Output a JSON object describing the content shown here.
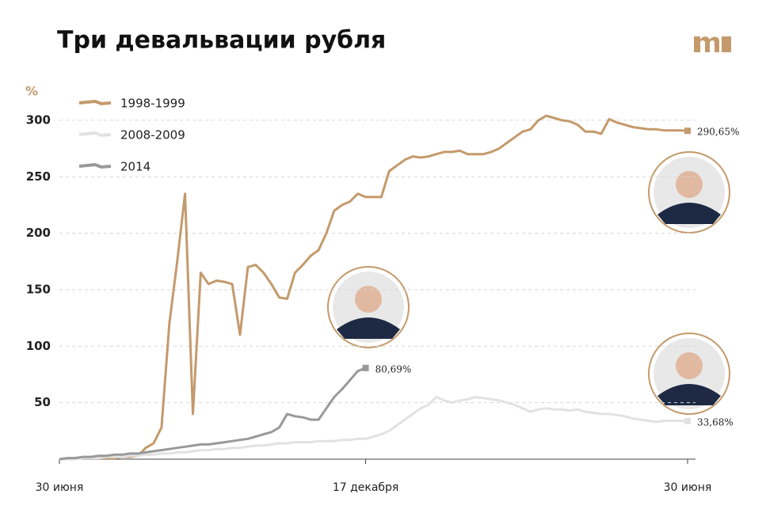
{
  "chart_data": {
    "type": "line",
    "title": "Три девальвации рубля",
    "y_label": "%",
    "categories": [
      "30 июня",
      null,
      null,
      null,
      null,
      null,
      null,
      null,
      null,
      null,
      null,
      null,
      null,
      null,
      null,
      null,
      null,
      null,
      null,
      null,
      null,
      null,
      null,
      null,
      null,
      null,
      null,
      null,
      null,
      null,
      null,
      null,
      null,
      null,
      null,
      null,
      null,
      null,
      null,
      "17 декабря",
      null,
      null,
      null,
      null,
      null,
      null,
      null,
      null,
      null,
      null,
      null,
      null,
      null,
      null,
      null,
      null,
      null,
      null,
      null,
      null,
      null,
      null,
      null,
      null,
      null,
      null,
      null,
      null,
      null,
      null,
      null,
      null,
      null,
      null,
      null,
      null,
      null,
      null,
      null,
      null,
      "30 июня"
    ],
    "ylim": [
      0,
      310
    ],
    "yticks": [
      50,
      100,
      150,
      200,
      250,
      300
    ],
    "grid": true,
    "legend": "top-left",
    "series": [
      {
        "name": "1998-1999",
        "color": "#c49a6c",
        "values": [
          0,
          0,
          1,
          1,
          1,
          1,
          1,
          1,
          2,
          2,
          3,
          10,
          14,
          28,
          120,
          175,
          235,
          40,
          165,
          155,
          158,
          157,
          155,
          110,
          170,
          172,
          165,
          155,
          143,
          142,
          165,
          172,
          180,
          185,
          200,
          220,
          225,
          228,
          235,
          232,
          232,
          232,
          255,
          260,
          265,
          268,
          267,
          268,
          270,
          272,
          272,
          273,
          270,
          270,
          270,
          272,
          275,
          280,
          285,
          290,
          292,
          300,
          304,
          302,
          300,
          299,
          296,
          290,
          290,
          288,
          301,
          298,
          296,
          294,
          293,
          292,
          292,
          291,
          291,
          291,
          290.65
        ],
        "value_labels": [
          null,
          null,
          null,
          null,
          null,
          null,
          null,
          null,
          null,
          null,
          null,
          null,
          null,
          null,
          null,
          null,
          null,
          null,
          null,
          null,
          null,
          null,
          null,
          null,
          null,
          null,
          null,
          null,
          null,
          null,
          null,
          null,
          null,
          null,
          null,
          null,
          null,
          null,
          null,
          null,
          null,
          null,
          null,
          null,
          null,
          null,
          null,
          null,
          null,
          null,
          null,
          null,
          null,
          null,
          null,
          null,
          null,
          null,
          null,
          null,
          null,
          null,
          null,
          null,
          null,
          null,
          null,
          null,
          null,
          null,
          null,
          null,
          null,
          null,
          null,
          null,
          null,
          null,
          null,
          null,
          "290,65%"
        ]
      },
      {
        "name": "2008-2009",
        "color": "#e2e2e2",
        "values": [
          0,
          0,
          0,
          1,
          1,
          1,
          2,
          2,
          2,
          3,
          3,
          4,
          4,
          5,
          5,
          6,
          6,
          7,
          8,
          8,
          9,
          9,
          10,
          10,
          11,
          12,
          12,
          13,
          14,
          14,
          15,
          15,
          15,
          16,
          16,
          16,
          17,
          17,
          18,
          18,
          20,
          22,
          25,
          30,
          35,
          40,
          45,
          48,
          55,
          52,
          50,
          52,
          53,
          55,
          54,
          53,
          52,
          50,
          48,
          45,
          42,
          44,
          45,
          44,
          44,
          43,
          44,
          42,
          41,
          40,
          40,
          39,
          38,
          36,
          35,
          34,
          33,
          34,
          34,
          34,
          33.68
        ],
        "value_labels": [
          null,
          null,
          null,
          null,
          null,
          null,
          null,
          null,
          null,
          null,
          null,
          null,
          null,
          null,
          null,
          null,
          null,
          null,
          null,
          null,
          null,
          null,
          null,
          null,
          null,
          null,
          null,
          null,
          null,
          null,
          null,
          null,
          null,
          null,
          null,
          null,
          null,
          null,
          null,
          null,
          null,
          null,
          null,
          null,
          null,
          null,
          null,
          null,
          null,
          null,
          null,
          null,
          null,
          null,
          null,
          null,
          null,
          null,
          null,
          null,
          null,
          null,
          null,
          null,
          null,
          null,
          null,
          null,
          null,
          null,
          null,
          null,
          null,
          null,
          null,
          null,
          null,
          null,
          null,
          null,
          "33,68%"
        ]
      },
      {
        "name": "2014",
        "color": "#999999",
        "values": [
          0,
          1,
          1,
          2,
          2,
          3,
          3,
          4,
          4,
          5,
          5,
          6,
          7,
          8,
          9,
          10,
          11,
          12,
          13,
          13,
          14,
          15,
          16,
          17,
          18,
          20,
          22,
          24,
          28,
          40,
          38,
          37,
          35,
          35,
          45,
          55,
          62,
          70,
          78,
          80.69,
          null,
          null,
          null,
          null,
          null,
          null,
          null,
          null,
          null,
          null,
          null,
          null,
          null,
          null,
          null,
          null,
          null,
          null,
          null,
          null,
          null,
          null,
          null,
          null,
          null,
          null,
          null,
          null,
          null,
          null,
          null,
          null,
          null,
          null,
          null,
          null,
          null,
          null,
          null,
          null,
          null
        ],
        "value_labels": [
          null,
          null,
          null,
          null,
          null,
          null,
          null,
          null,
          null,
          null,
          null,
          null,
          null,
          null,
          null,
          null,
          null,
          null,
          null,
          null,
          null,
          null,
          null,
          null,
          null,
          null,
          null,
          null,
          null,
          null,
          null,
          null,
          null,
          null,
          null,
          null,
          null,
          null,
          null,
          "80,69%",
          null,
          null,
          null,
          null,
          null,
          null,
          null,
          null,
          null,
          null,
          null,
          null,
          null,
          null,
          null,
          null,
          null,
          null,
          null,
          null,
          null,
          null,
          null,
          null,
          null,
          null,
          null,
          null,
          null,
          null,
          null,
          null,
          null,
          null,
          null,
          null,
          null,
          null,
          null,
          null,
          null
        ]
      }
    ]
  }
}
